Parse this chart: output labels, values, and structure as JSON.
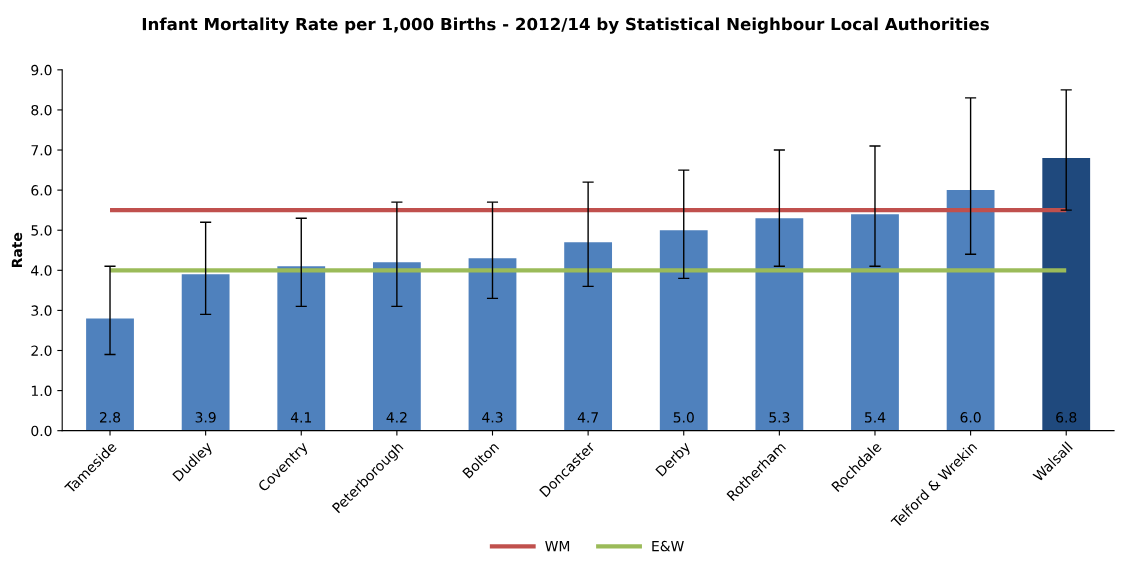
{
  "chart_data": {
    "type": "bar",
    "title": "Infant Mortality Rate per 1,000 Births - 2012/14 by Statistical Neighbour Local Authorities",
    "ylabel": "Rate",
    "categories": [
      "Tameside",
      "Dudley",
      "Coventry",
      "Peterborough",
      "Bolton",
      "Doncaster",
      "Derby",
      "Rotherham",
      "Rochdale",
      "Telford & Wrekin",
      "Walsall"
    ],
    "values": [
      2.8,
      3.9,
      4.1,
      4.2,
      4.3,
      4.7,
      5.0,
      5.3,
      5.4,
      6.0,
      6.8
    ],
    "colors": [
      "#4f81bd",
      "#4f81bd",
      "#4f81bd",
      "#4f81bd",
      "#4f81bd",
      "#4f81bd",
      "#4f81bd",
      "#4f81bd",
      "#4f81bd",
      "#4f81bd",
      "#1f497d"
    ],
    "errors": [
      [
        1.9,
        4.1
      ],
      [
        2.9,
        5.2
      ],
      [
        3.1,
        5.3
      ],
      [
        3.1,
        5.7
      ],
      [
        3.3,
        5.7
      ],
      [
        3.6,
        6.2
      ],
      [
        3.8,
        6.5
      ],
      [
        4.1,
        7.0
      ],
      [
        4.1,
        7.1
      ],
      [
        4.4,
        8.3
      ],
      [
        5.5,
        8.5
      ]
    ],
    "value_labels": [
      "2.8",
      "3.9",
      "4.1",
      "4.2",
      "4.3",
      "4.7",
      "5.0",
      "5.3",
      "5.4",
      "6.0",
      "6.8"
    ],
    "ylim": [
      0,
      9
    ],
    "yticks": [
      {
        "value": 0,
        "label": "0.0"
      },
      {
        "value": 1,
        "label": "1.0"
      },
      {
        "value": 2,
        "label": "2.0"
      },
      {
        "value": 3,
        "label": "3.0"
      },
      {
        "value": 4,
        "label": "4.0"
      },
      {
        "value": 5,
        "label": "5.0"
      },
      {
        "value": 6,
        "label": "6.0"
      },
      {
        "value": 7,
        "label": "7.0"
      },
      {
        "value": 8,
        "label": "8.0"
      },
      {
        "value": 9,
        "label": "9.0"
      }
    ],
    "ref_lines": [
      {
        "axis": "y",
        "value": 5.5,
        "label": "WM",
        "color": "#c0504d"
      },
      {
        "axis": "y",
        "value": 4.0,
        "label": "E&W",
        "color": "#9bbb59"
      }
    ],
    "grid": false,
    "legend": "bottom"
  }
}
